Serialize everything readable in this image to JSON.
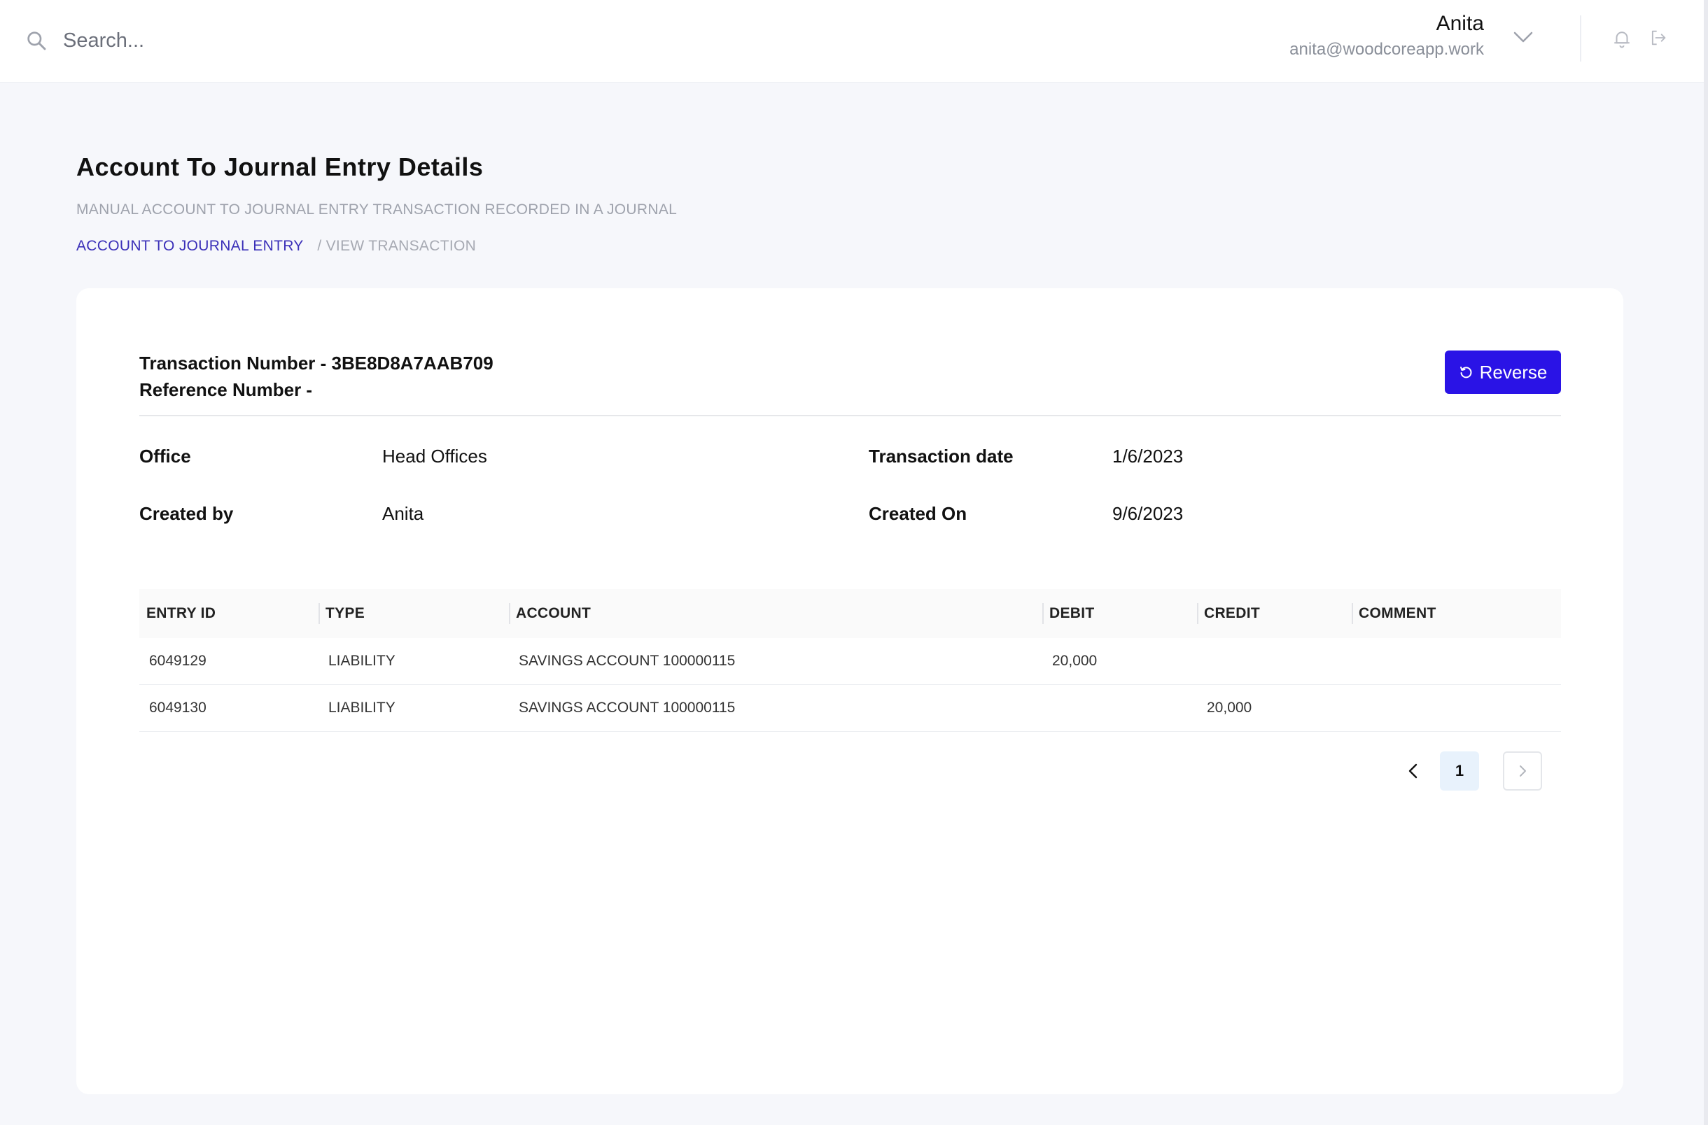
{
  "search": {
    "placeholder": "Search..."
  },
  "user": {
    "name": "Anita",
    "email": "anita@woodcoreapp.work"
  },
  "header": {
    "title": "Account To Journal Entry Details",
    "subtitle": "MANUAL ACCOUNT TO JOURNAL ENTRY TRANSACTION RECORDED IN A JOURNAL"
  },
  "breadcrumb": {
    "link": "ACCOUNT TO JOURNAL ENTRY",
    "current": "/ VIEW TRANSACTION"
  },
  "transaction": {
    "number_line": "Transaction Number - 3BE8D8A7AAB709",
    "reference_line": "Reference Number -",
    "reverse_label": "Reverse",
    "office_label": "Office",
    "office_value": "Head Offices",
    "created_by_label": "Created by",
    "created_by_value": "Anita",
    "date_label": "Transaction date",
    "date_value": "1/6/2023",
    "created_on_label": "Created On",
    "created_on_value": "9/6/2023"
  },
  "table": {
    "headers": [
      "ENTRY ID",
      "TYPE",
      "ACCOUNT",
      "DEBIT",
      "CREDIT",
      "COMMENT"
    ],
    "rows": [
      [
        "6049129",
        "LIABILITY",
        "SAVINGS ACCOUNT 100000115",
        "20,000",
        "",
        ""
      ],
      [
        "6049130",
        "LIABILITY",
        "SAVINGS ACCOUNT 100000115",
        "",
        "20,000",
        ""
      ]
    ]
  },
  "pagination": {
    "current_page": "1"
  },
  "colors": {
    "accent": "#2a13e6",
    "breadcrumb_link": "#3a2fb8",
    "page_bg": "#f6f7fb"
  },
  "icons": [
    "search-icon",
    "chevron-down-icon",
    "bell-icon",
    "logout-icon",
    "undo-icon",
    "chevron-left-icon",
    "chevron-right-icon"
  ]
}
